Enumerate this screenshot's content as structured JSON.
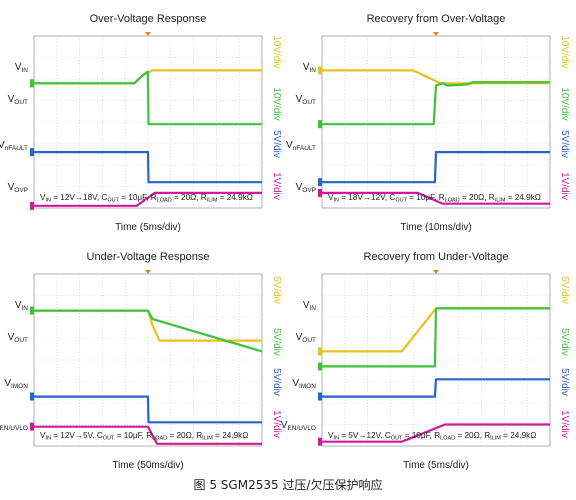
{
  "figure_caption": "图 5 SGM2535 过压/欠压保护响应",
  "colors": {
    "yellow": "#e8c21c",
    "green": "#3cc23c",
    "blue": "#2a62c8",
    "magenta": "#d01a9c",
    "grid": "#c8c8c8"
  },
  "chart_data": [
    {
      "type": "line",
      "title": "Over-Voltage Response",
      "xlabel": "Time (5ms/div)",
      "conditions": {
        "vin": "V",
        "vin_sub": "IN",
        "vin_val": " = 12V→18V, ",
        "cout": "C",
        "cout_sub": "OUT",
        "cout_val": " = 10μF, ",
        "rload": "R",
        "rload_sub": "LOAD",
        "rload_val": " = 20Ω, ",
        "rilim": "R",
        "rilim_sub": "ILIM",
        "rilim_val": " = 24.9kΩ"
      },
      "step_index": 5,
      "traces": [
        {
          "name": "V",
          "sub": "IN",
          "scale": "10V/div",
          "color": "yellow",
          "x": [
            0,
            4.4,
            4.8,
            5.2,
            10
          ],
          "y": [
            5.8,
            5.8,
            6.2,
            6.4,
            6.4
          ]
        },
        {
          "name": "V",
          "sub": "OUT",
          "scale": "10V/div",
          "color": "green",
          "x": [
            0,
            4.4,
            4.8,
            5.0,
            5.02,
            10
          ],
          "y": [
            5.8,
            5.8,
            6.2,
            6.35,
            3.9,
            3.9
          ]
        },
        {
          "name": "V",
          "sub": "nFAULT",
          "scale": "5V/div",
          "color": "blue",
          "x": [
            0,
            5.0,
            5.02,
            10
          ],
          "y": [
            2.6,
            2.6,
            1.2,
            1.2
          ]
        },
        {
          "name": "V",
          "sub": "OVP",
          "scale": "1V/div",
          "color": "magenta",
          "x": [
            0,
            4.5,
            5.3,
            10
          ],
          "y": [
            0.1,
            0.1,
            0.7,
            0.7
          ]
        }
      ]
    },
    {
      "type": "line",
      "title": "Recovery from Over-Voltage",
      "xlabel": "Time (10ms/div)",
      "conditions": {
        "vin": "V",
        "vin_sub": "IN",
        "vin_val": " = 18V→12V, ",
        "cout": "C",
        "cout_sub": "OUT",
        "cout_val": " = 10μF, ",
        "rload": "R",
        "rload_sub": "LOAD",
        "rload_val": " = 20Ω, ",
        "rilim": "R",
        "rilim_sub": "ILIM",
        "rilim_val": " = 24.9kΩ"
      },
      "step_index": 5,
      "traces": [
        {
          "name": "V",
          "sub": "IN",
          "scale": "10V/div",
          "color": "yellow",
          "x": [
            0,
            4.0,
            5.2,
            10
          ],
          "y": [
            6.4,
            6.4,
            5.8,
            5.8
          ]
        },
        {
          "name": "V",
          "sub": "OUT",
          "scale": "10V/div",
          "color": "green",
          "x": [
            0,
            4.9,
            5.0,
            5.3,
            5.5,
            6.4,
            6.6,
            10
          ],
          "y": [
            3.9,
            3.9,
            5.7,
            5.8,
            5.7,
            5.75,
            5.85,
            5.85
          ]
        },
        {
          "name": "V",
          "sub": "nFAULT",
          "scale": "5V/div",
          "color": "blue",
          "x": [
            0,
            4.95,
            5.0,
            10
          ],
          "y": [
            1.2,
            1.2,
            2.6,
            2.6
          ]
        },
        {
          "name": "V",
          "sub": "OVP",
          "scale": "1V/div",
          "color": "magenta",
          "x": [
            0,
            4.2,
            5.3,
            10
          ],
          "y": [
            0.7,
            0.7,
            0.2,
            0.2
          ]
        }
      ]
    },
    {
      "type": "line",
      "title": "Under-Voltage Response",
      "xlabel": "Time (50ms/div)",
      "conditions": {
        "vin": "V",
        "vin_sub": "IN",
        "vin_val": " = 12V→5V, ",
        "cout": "C",
        "cout_sub": "OUT",
        "cout_val": " = 10μF, ",
        "rload": "R",
        "rload_sub": "LOAD",
        "rload_val": " = 20Ω, ",
        "rilim": "R",
        "rilim_sub": "ILIM",
        "rilim_val": " = 24.9kΩ"
      },
      "step_index": 5,
      "traces": [
        {
          "name": "V",
          "sub": "IN",
          "scale": "5V/div",
          "color": "yellow",
          "x": [
            0,
            5.0,
            5.2,
            5.5,
            10
          ],
          "y": [
            6.3,
            6.3,
            5.6,
            4.9,
            4.9
          ]
        },
        {
          "name": "V",
          "sub": "OUT",
          "scale": "5V/div",
          "color": "green",
          "x": [
            0,
            5.0,
            5.2,
            10
          ],
          "y": [
            6.3,
            6.3,
            5.9,
            4.4
          ]
        },
        {
          "name": "V",
          "sub": "IMON",
          "scale": "5V/div",
          "color": "blue",
          "x": [
            0,
            5.0,
            5.02,
            10
          ],
          "y": [
            2.3,
            2.3,
            1.1,
            1.1
          ]
        },
        {
          "name": "V",
          "sub": "EN/UVLO",
          "scale": "1V/div",
          "color": "magenta",
          "x": [
            0,
            5.0,
            5.4,
            10
          ],
          "y": [
            0.9,
            0.9,
            0.1,
            0.1
          ]
        }
      ]
    },
    {
      "type": "line",
      "title": "Recovery from Under-Voltage",
      "xlabel": "Time (5ms/div)",
      "conditions": {
        "vin": "V",
        "vin_sub": "IN",
        "vin_val": " = 5V→12V, ",
        "cout": "C",
        "cout_sub": "OUT",
        "cout_val": " = 10μF, ",
        "rload": "R",
        "rload_sub": "LOAD",
        "rload_val": " = 20Ω, ",
        "rilim": "R",
        "rilim_sub": "ILIM",
        "rilim_val": " = 24.9kΩ"
      },
      "step_index": 5,
      "traces": [
        {
          "name": "V",
          "sub": "IN",
          "scale": "5V/div",
          "color": "yellow",
          "x": [
            0,
            3.5,
            5.0,
            10
          ],
          "y": [
            4.4,
            4.4,
            6.4,
            6.4
          ]
        },
        {
          "name": "V",
          "sub": "OUT",
          "scale": "5V/div",
          "color": "green",
          "x": [
            0,
            4.95,
            5.0,
            5.02,
            10
          ],
          "y": [
            3.7,
            3.7,
            6.35,
            6.4,
            6.4
          ]
        },
        {
          "name": "V",
          "sub": "IMON",
          "scale": "5V/div",
          "color": "blue",
          "x": [
            0,
            4.95,
            5.0,
            10
          ],
          "y": [
            2.3,
            2.3,
            3.1,
            3.1
          ]
        },
        {
          "name": "V",
          "sub": "EN/UVLO",
          "scale": "1V/div",
          "color": "magenta",
          "x": [
            0,
            3.5,
            5.4,
            10
          ],
          "y": [
            0.2,
            0.2,
            1.0,
            1.0
          ]
        }
      ]
    }
  ]
}
